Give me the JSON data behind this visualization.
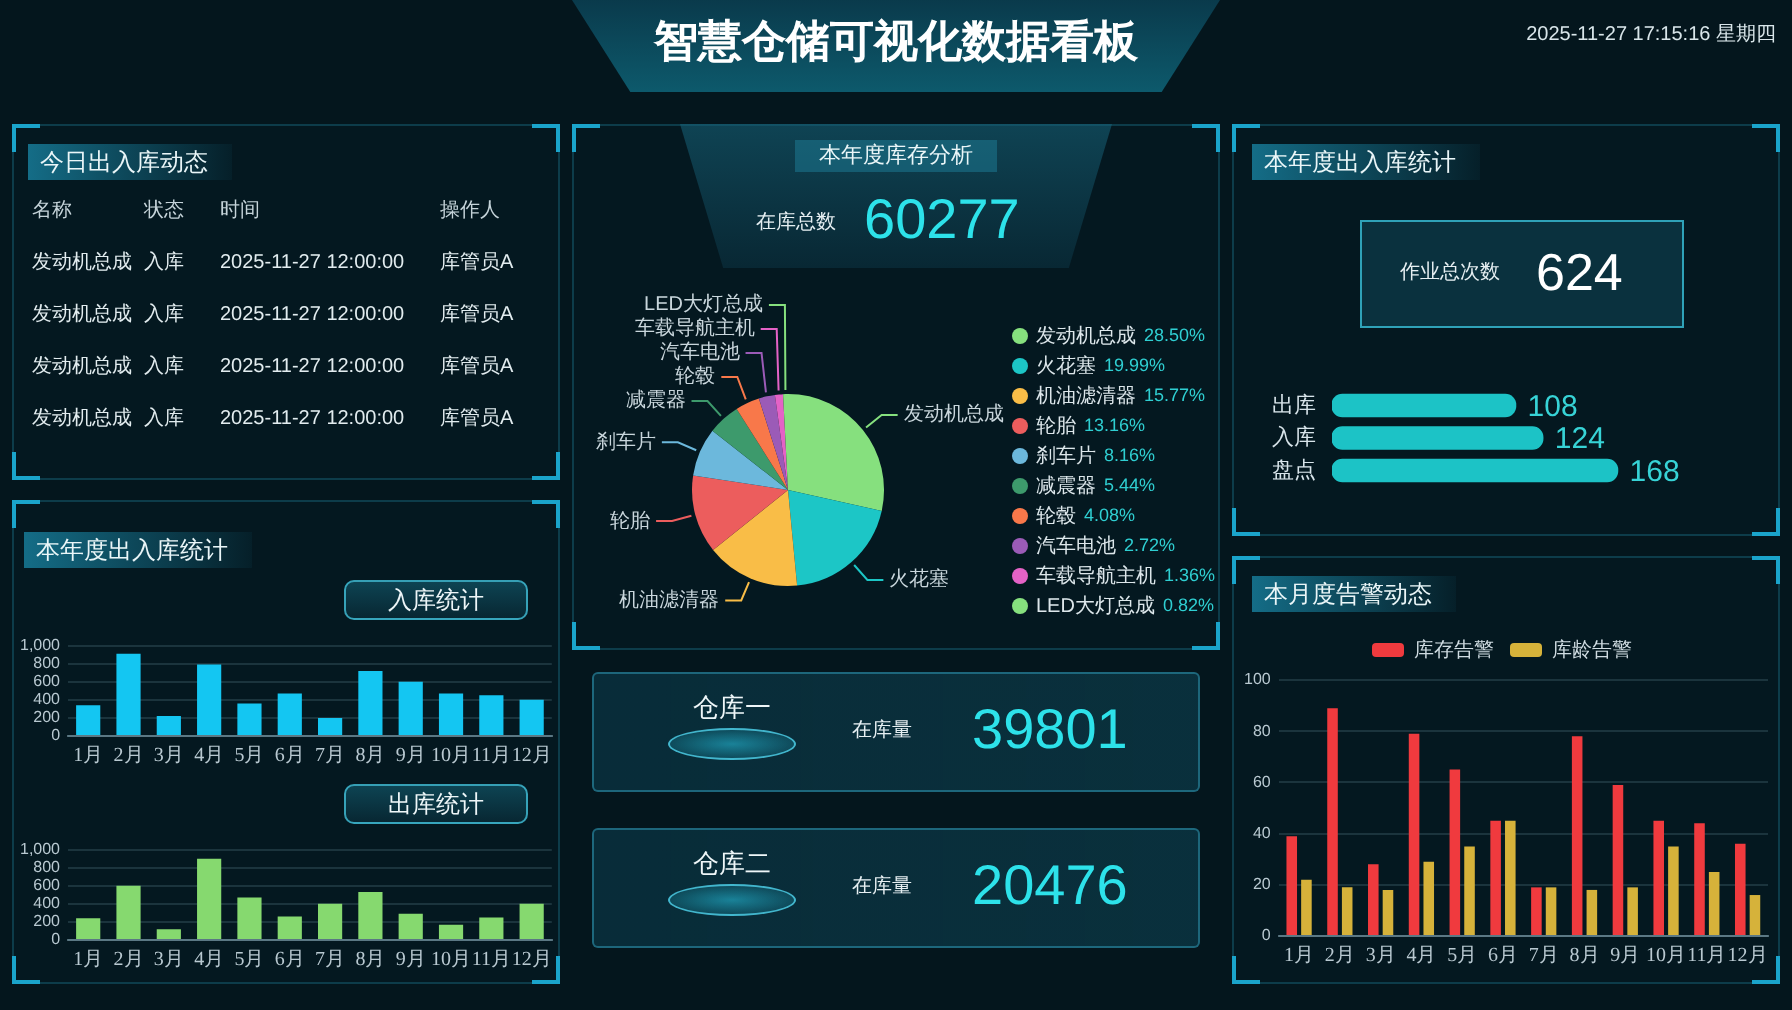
{
  "chart_data": [
    {
      "type": "other",
      "title": "智慧仓储可视化数据看板",
      "annotations": [
        "2025-11-27 17:15:16 星期四"
      ]
    },
    {
      "type": "other",
      "title": "今日出入库动态",
      "categories": [
        "名称",
        "状态",
        "时间",
        "操作人"
      ],
      "annotations": [
        "发动机总成",
        "入库",
        "2025-11-27 12:00:00",
        "库管员A",
        "发动机总成",
        "入库",
        "2025-11-27 12:00:00",
        "库管员A",
        "发动机总成",
        "入库",
        "2025-11-27 12:00:00",
        "库管员A",
        "发动机总成",
        "入库",
        "2025-11-27 12:00:00",
        "库管员A"
      ]
    },
    {
      "type": "bar",
      "title": "本年度出入库统计",
      "subtitle": "入库统计",
      "categories": [
        "1月",
        "2月",
        "3月",
        "4月",
        "5月",
        "6月",
        "7月",
        "8月",
        "9月",
        "10月",
        "11月",
        "12月"
      ],
      "values": [
        340,
        910,
        220,
        790,
        360,
        470,
        200,
        720,
        600,
        470,
        450,
        400
      ],
      "color": "#14c6f2",
      "ylim": [
        0,
        1000
      ],
      "yticks": [
        0,
        200,
        400,
        600,
        800,
        {
          "value": 1000,
          "label": "1,000"
        }
      ],
      "grid": "y"
    },
    {
      "type": "bar",
      "title": "出库统计",
      "categories": [
        "1月",
        "2月",
        "3月",
        "4月",
        "5月",
        "6月",
        "7月",
        "8月",
        "9月",
        "10月",
        "11月",
        "12月"
      ],
      "values": [
        240,
        600,
        120,
        900,
        470,
        260,
        400,
        530,
        290,
        170,
        250,
        400
      ],
      "color": "#86d96f",
      "ylim": [
        0,
        1000
      ],
      "yticks": [
        0,
        200,
        400,
        600,
        800,
        {
          "value": 1000,
          "label": "1,000"
        }
      ],
      "grid": "y"
    },
    {
      "type": "other",
      "title": "本年度库存分析",
      "categories": [
        "在库总数"
      ],
      "values": [
        60277
      ],
      "data_labels": true
    },
    {
      "type": "pie",
      "categories": [
        "发动机总成",
        "火花塞",
        "机油滤清器",
        "轮胎",
        "刹车片",
        "减震器",
        "轮毂",
        "汽车电池",
        "车载导航主机",
        "LED大灯总成"
      ],
      "values": [
        28.5,
        19.99,
        15.77,
        13.16,
        8.16,
        5.44,
        4.08,
        2.72,
        1.36,
        0.82
      ],
      "colors": [
        "#86e07e",
        "#1cc6c6",
        "#f9bd47",
        "#ec5d5d",
        "#6cb8dc",
        "#3d9a6c",
        "#f8784a",
        "#9b5bb7",
        "#e462c6",
        "#86e07e"
      ],
      "value_labels": [
        "28.50%",
        "19.99%",
        "15.77%",
        "13.16%",
        "8.16%",
        "5.44%",
        "4.08%",
        "2.72%",
        "1.36%",
        "0.82%"
      ],
      "legend": "right"
    },
    {
      "type": "other",
      "categories": [
        "仓库一",
        "仓库二"
      ],
      "series": [
        {
          "name": "在库量",
          "values": [
            39801,
            20476
          ]
        }
      ],
      "data_labels": true
    },
    {
      "type": "other",
      "title": "本年度出入库统计",
      "categories": [
        "作业总次数"
      ],
      "values": [
        624
      ],
      "data_labels": true
    },
    {
      "type": "bar",
      "orientation": "horizontal",
      "categories": [
        "出库",
        "入库",
        "盘点"
      ],
      "values": [
        108,
        124,
        168
      ],
      "color": "#1cc3c6",
      "data_labels": true
    },
    {
      "type": "bar",
      "title": "本月度告警动态",
      "categories": [
        "1月",
        "2月",
        "3月",
        "4月",
        "5月",
        "6月",
        "7月",
        "8月",
        "9月",
        "10月",
        "11月",
        "12月"
      ],
      "series": [
        {
          "name": "库存告警",
          "color": "#f03a3e",
          "values": [
            39,
            89,
            28,
            79,
            65,
            45,
            19,
            78,
            59,
            45,
            44,
            36
          ]
        },
        {
          "name": "库龄告警",
          "color": "#d6b23a",
          "values": [
            22,
            19,
            18,
            29,
            35,
            45,
            19,
            18,
            19,
            35,
            25,
            16
          ]
        }
      ],
      "ylim": [
        0,
        100
      ],
      "yticks": [
        0,
        20,
        40,
        60,
        80,
        100
      ],
      "grid": "y",
      "legend": "top"
    }
  ]
}
